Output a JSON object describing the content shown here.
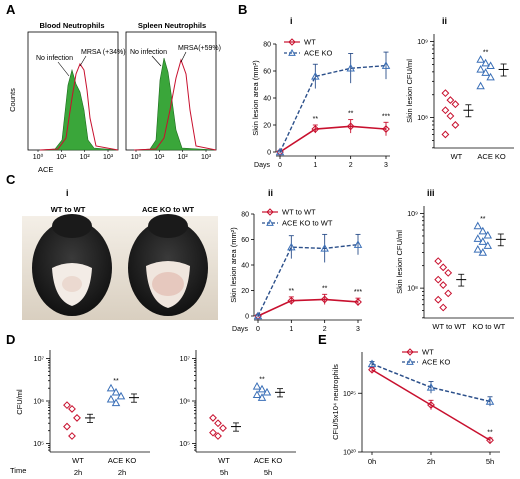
{
  "colors": {
    "wt": "#c8102e",
    "ko": "#3a6fb7",
    "ko_line": "#2b4f8a",
    "green_fill": "#3aa63a"
  },
  "panelA": {
    "letter": "A",
    "ylabel": "Counts",
    "xlabel": "ACE",
    "blood": {
      "title": "Blood Neutrophils",
      "ann_noinf": "No infection",
      "ann_mrsa": "MRSA (+34%)",
      "ticks": [
        "10⁰",
        "10¹",
        "10²",
        "10³"
      ]
    },
    "spleen": {
      "title": "Spleen Neutrophils",
      "ann_noinf": "No infection",
      "ann_mrsa": "MRSA(+59%)",
      "ticks": [
        "10⁰",
        "10¹",
        "10²",
        "10³"
      ]
    }
  },
  "panelB": {
    "letter": "B",
    "sub_i": "i",
    "sub_ii": "ii",
    "line": {
      "ylabel": "Skin lesion area (mm²)",
      "xlabel": "Days",
      "x": [
        0,
        1,
        2,
        3
      ],
      "ylim": [
        0,
        80
      ],
      "yticks": [
        "0",
        "20",
        "40",
        "60",
        "80"
      ],
      "xticks": [
        "0",
        "1",
        "2",
        "3"
      ],
      "series": [
        {
          "name": "WT",
          "values": [
            0,
            17,
            19,
            17
          ],
          "err": [
            1,
            3,
            5,
            5
          ]
        },
        {
          "name": "ACE KO",
          "values": [
            0,
            56,
            62,
            64
          ],
          "err": [
            1,
            9,
            11,
            10
          ]
        }
      ],
      "sig": [
        "**",
        "**",
        "***"
      ]
    },
    "scatter": {
      "ylabel": "Skin lesion CFU/ml",
      "yticks": [
        "10⁸",
        "10⁹"
      ],
      "xticks": [
        "WT",
        "ACE KO"
      ],
      "groups": [
        {
          "name": "WT",
          "values": [
            210000000.0,
            170000000.0,
            150000000.0,
            125000000.0,
            105000000.0,
            80000000.0,
            60000000.0
          ],
          "mean": 125000000.0
        },
        {
          "name": "ACE KO",
          "values": [
            580000000.0,
            520000000.0,
            480000000.0,
            430000000.0,
            390000000.0,
            340000000.0,
            260000000.0
          ],
          "mean": 430000000.0
        }
      ],
      "sig": "**"
    }
  },
  "panelC": {
    "letter": "C",
    "sub_i": "i",
    "sub_ii": "ii",
    "sub_iii": "iii",
    "photo_labels": [
      "WT to WT",
      "ACE KO to WT"
    ],
    "line": {
      "ylabel": "Skin lesion area (mm²)",
      "xlabel": "Days",
      "x": [
        0,
        1,
        2,
        3
      ],
      "ylim": [
        0,
        80
      ],
      "yticks": [
        "0",
        "20",
        "40",
        "60",
        "80"
      ],
      "xticks": [
        "0",
        "1",
        "2",
        "3"
      ],
      "series": [
        {
          "name": "WT to WT",
          "values": [
            0,
            12,
            13,
            11
          ],
          "err": [
            1,
            3,
            4,
            3
          ]
        },
        {
          "name": "ACE KO to WT",
          "values": [
            0,
            54,
            53,
            56
          ],
          "err": [
            1,
            9,
            11,
            8
          ]
        }
      ],
      "sig": [
        "**",
        "**",
        "***"
      ]
    },
    "scatter": {
      "ylabel": "Skin lesion CFU/ml",
      "yticks": [
        "10⁸",
        "10⁹"
      ],
      "xticks": [
        "WT to WT",
        "KO to WT"
      ],
      "groups": [
        {
          "name": "WT to WT",
          "values": [
            230000000.0,
            190000000.0,
            160000000.0,
            130000000.0,
            110000000.0,
            85000000.0,
            70000000.0,
            55000000.0
          ],
          "mean": 130000000.0
        },
        {
          "name": "KO to WT",
          "values": [
            680000000.0,
            580000000.0,
            510000000.0,
            460000000.0,
            420000000.0,
            370000000.0,
            330000000.0,
            300000000.0
          ],
          "mean": 450000000.0
        }
      ],
      "sig": "**"
    }
  },
  "panelD": {
    "letter": "D",
    "ylabel": "CFU/ml",
    "time_label": "Time",
    "left": {
      "yticks": [
        "10⁵",
        "10⁶",
        "10⁷"
      ],
      "groups": [
        "WT",
        "ACE KO"
      ],
      "times": [
        "2h",
        "2h"
      ],
      "wt": [
        800000.0,
        650000.0,
        400000.0,
        250000.0,
        150000.0
      ],
      "wt_mean": 400000.0,
      "ko": [
        2000000.0,
        1600000.0,
        1300000.0,
        1100000.0,
        900000.0
      ],
      "ko_mean": 1200000.0,
      "sig": "**"
    },
    "right": {
      "yticks": [
        "10⁵",
        "10⁶",
        "10⁷"
      ],
      "groups": [
        "WT",
        "ACE KO"
      ],
      "times": [
        "5h",
        "5h"
      ],
      "wt": [
        400000.0,
        300000.0,
        230000.0,
        180000.0,
        150000.0
      ],
      "wt_mean": 250000.0,
      "ko": [
        2200000.0,
        1900000.0,
        1600000.0,
        1400000.0,
        1200000.0
      ],
      "ko_mean": 1600000.0,
      "sig": "**"
    }
  },
  "panelE": {
    "letter": "E",
    "ylabel": "CFU/5x10⁴ neutrophils",
    "xticks": [
      "0h",
      "2h",
      "5h"
    ],
    "yticks": [
      "10²⁰",
      "10²⁵"
    ],
    "ylim": [
      2.0,
      2.8
    ],
    "series": [
      {
        "name": "WT",
        "values": [
          2.7,
          2.4,
          2.1
        ],
        "err": [
          0.02,
          0.04,
          0.02
        ]
      },
      {
        "name": "ACE KO",
        "values": [
          2.75,
          2.55,
          2.43
        ],
        "err": [
          0.02,
          0.05,
          0.04
        ]
      }
    ],
    "sig": "**"
  }
}
